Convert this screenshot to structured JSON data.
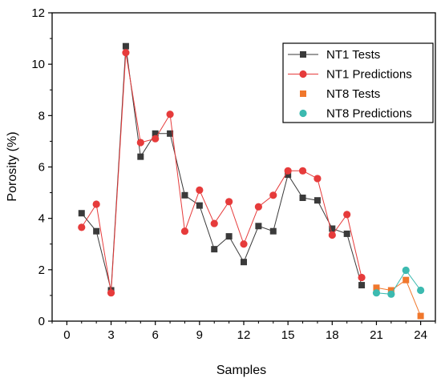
{
  "chart_data": {
    "type": "line",
    "title": "",
    "xlabel": "Samples",
    "ylabel": "Porosity (%)",
    "xlim": [
      -1,
      25
    ],
    "ylim": [
      0,
      12
    ],
    "xticks": [
      0,
      3,
      6,
      9,
      12,
      15,
      18,
      21,
      24
    ],
    "yticks": [
      0,
      2,
      4,
      6,
      8,
      10,
      12
    ],
    "legend_position": "top-right",
    "grid": false,
    "series": [
      {
        "name": "NT1 Tests",
        "marker": "square",
        "line": true,
        "color": "#3a3a3a",
        "x": [
          1,
          2,
          3,
          4,
          5,
          6,
          7,
          8,
          9,
          10,
          11,
          12,
          13,
          14,
          15,
          16,
          17,
          18,
          19,
          20
        ],
        "values": [
          4.2,
          3.5,
          1.2,
          10.7,
          6.4,
          7.3,
          7.3,
          4.9,
          4.5,
          2.8,
          3.3,
          2.3,
          3.7,
          3.5,
          5.7,
          4.8,
          4.7,
          3.6,
          3.4,
          1.4
        ]
      },
      {
        "name": "NT1 Predictions",
        "marker": "circle",
        "line": true,
        "color": "#e63b3b",
        "x": [
          1,
          2,
          3,
          4,
          5,
          6,
          7,
          8,
          9,
          10,
          11,
          12,
          13,
          14,
          15,
          16,
          17,
          18,
          19,
          20
        ],
        "values": [
          3.65,
          4.55,
          1.1,
          10.45,
          6.95,
          7.1,
          8.05,
          3.5,
          5.1,
          3.8,
          4.65,
          3.0,
          4.45,
          4.9,
          5.85,
          5.85,
          5.55,
          3.35,
          4.15,
          1.7
        ]
      },
      {
        "name": "NT8 Tests",
        "marker": "square",
        "line": true,
        "color": "#f0772c",
        "x": [
          21,
          22,
          23,
          24
        ],
        "values": [
          1.3,
          1.2,
          1.6,
          0.2
        ]
      },
      {
        "name": "NT8 Predictions",
        "marker": "circle",
        "line": true,
        "color": "#3cbab0",
        "x": [
          21,
          22,
          23,
          24
        ],
        "values": [
          1.1,
          1.05,
          1.98,
          1.2
        ]
      }
    ]
  }
}
